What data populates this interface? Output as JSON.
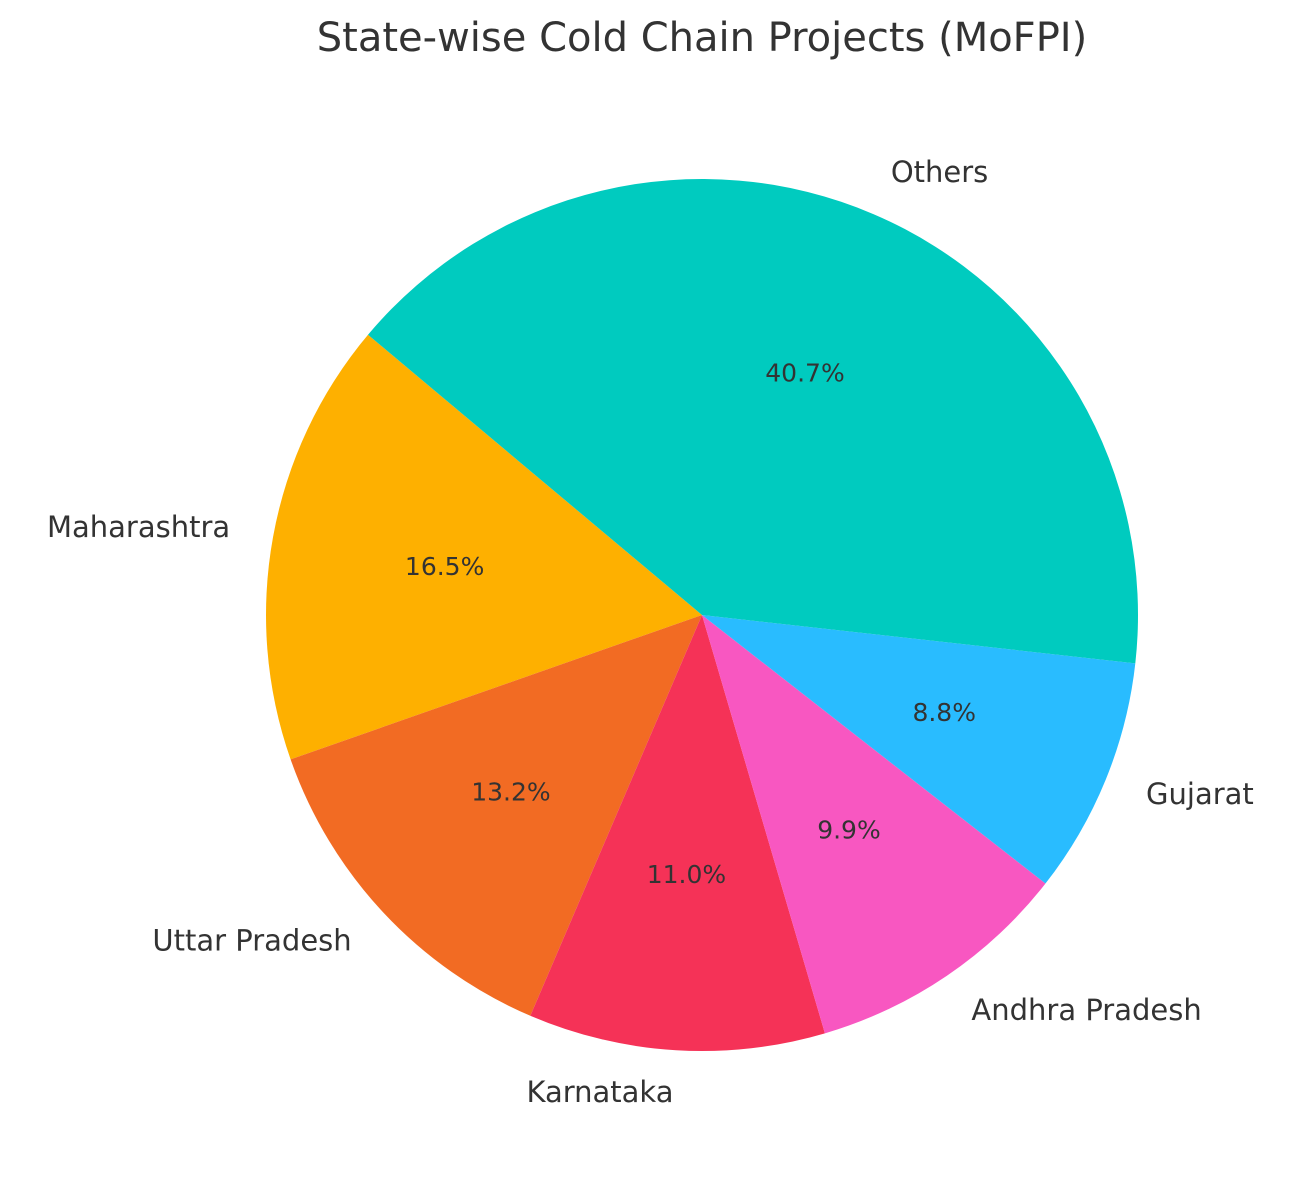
{
  "chart_data": {
    "type": "pie",
    "title": "State-wise Cold Chain Projects (MoFPI)",
    "categories": [
      "Maharashtra",
      "Uttar Pradesh",
      "Karnataka",
      "Andhra Pradesh",
      "Gujarat",
      "Others"
    ],
    "values": [
      16.5,
      13.2,
      11.0,
      9.9,
      8.8,
      40.7
    ],
    "value_labels": [
      "16.5%",
      "13.2%",
      "11.0%",
      "9.9%",
      "8.8%",
      "40.7%"
    ],
    "colors": [
      "#FEB000",
      "#F26B23",
      "#F53257",
      "#F857C1",
      "#29BCFF",
      "#00CBBF"
    ]
  }
}
